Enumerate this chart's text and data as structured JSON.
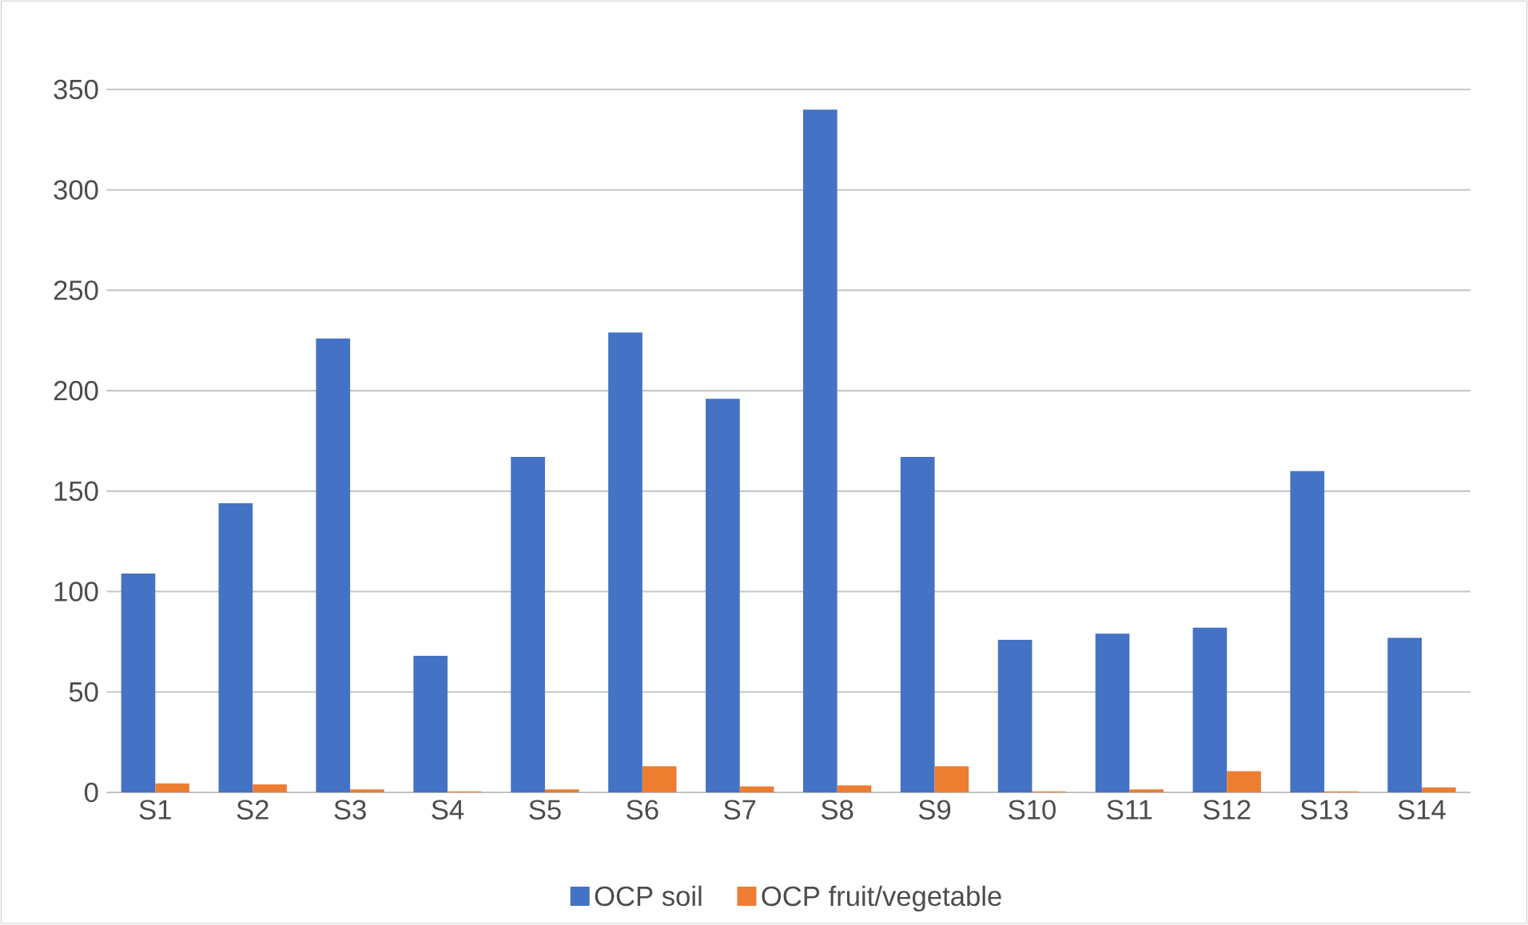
{
  "chart_data": {
    "type": "bar",
    "categories": [
      "S1",
      "S2",
      "S3",
      "S4",
      "S5",
      "S6",
      "S7",
      "S8",
      "S9",
      "S10",
      "S11",
      "S12",
      "S13",
      "S14"
    ],
    "series": [
      {
        "name": "OCP soil",
        "color": "#4472c4",
        "values": [
          109,
          144,
          226,
          68,
          167,
          229,
          196,
          340,
          167,
          76,
          79,
          82,
          160,
          77
        ]
      },
      {
        "name": "OCP fruit/vegetable",
        "color": "#ed7d31",
        "values": [
          4.5,
          4,
          1.5,
          0.5,
          1.5,
          13,
          3,
          3.5,
          13,
          0.5,
          1.5,
          10.5,
          0.5,
          2.5
        ]
      }
    ],
    "ylim": [
      0,
      350
    ],
    "yticks": [
      0,
      50,
      100,
      150,
      200,
      250,
      300,
      350
    ],
    "grid": "y",
    "legend": "bottom"
  }
}
